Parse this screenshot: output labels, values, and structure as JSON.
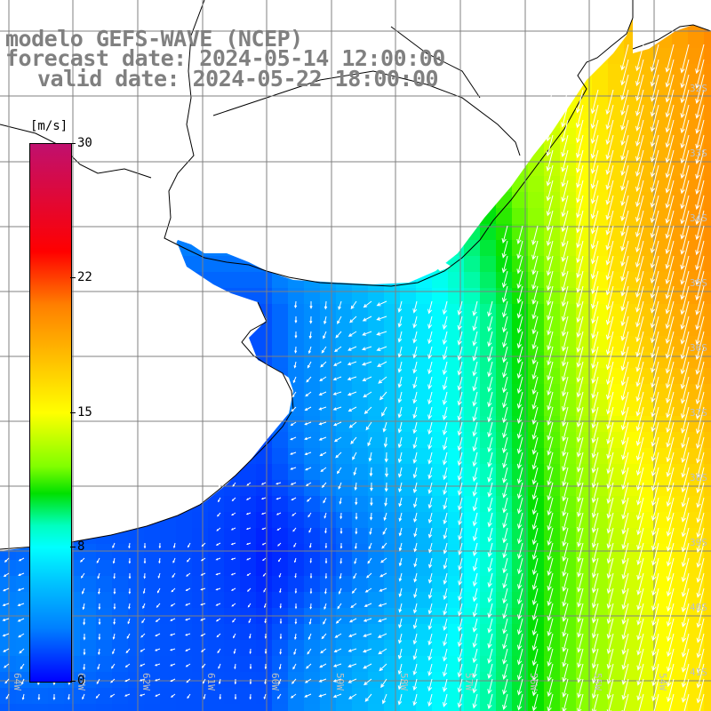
{
  "title": {
    "line1": "modelo GEFS-WAVE (NCEP)",
    "line2": "forecast date: 2024-05-14 12:00:00",
    "line3": "valid date: 2024-05-22 18:00:00"
  },
  "colorbar": {
    "units": "[m/s]",
    "ticks": [
      "30",
      "22",
      "15",
      "8",
      "0"
    ],
    "tick_values": [
      30,
      22,
      15,
      8,
      0
    ],
    "min": 0,
    "max": 30
  },
  "colors": {
    "land": "#ffffff",
    "grid": "#808080",
    "coast": "#000000",
    "arrows": "#ffffff",
    "label_text": "#808080"
  },
  "map": {
    "variable": "wind speed and direction",
    "lat_labels": [
      "32S",
      "33S",
      "34S",
      "35S",
      "36S",
      "37S",
      "38S",
      "39S",
      "40S",
      "41S"
    ],
    "lon_labels": [
      "64W",
      "63W",
      "62W",
      "61W",
      "60W",
      "59W",
      "58W",
      "57W",
      "56W",
      "55W",
      "54W"
    ]
  }
}
